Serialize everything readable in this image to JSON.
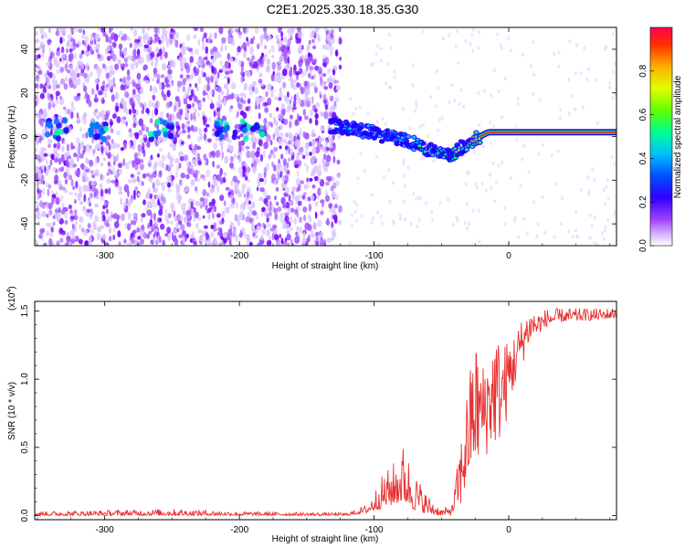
{
  "title": "C2E1.2025.330.18.35.G30",
  "chart_data": [
    {
      "type": "heatmap",
      "name": "spectrogram",
      "xlabel": "Height of straight line (km)",
      "ylabel": "Frequency (Hz)",
      "xlim": [
        -352,
        80
      ],
      "ylim": [
        -50,
        50
      ],
      "xticks": [
        -300,
        -200,
        -100,
        0
      ],
      "yticks": [
        -40,
        -20,
        0,
        20,
        40
      ],
      "colorbar": {
        "label": "Normalized spectral amplitude",
        "range": [
          0,
          1
        ],
        "ticks": [
          "0.0",
          "0.2",
          "0.4",
          "0.6",
          "0.8"
        ],
        "colormap": [
          "#ffffff",
          "#c080ff",
          "#7a00ff",
          "#2a00ff",
          "#0060ff",
          "#00c8ff",
          "#00ff80",
          "#b0ff00",
          "#ffe000",
          "#ff6000",
          "#ff0000"
        ]
      },
      "carrier_track": {
        "x": [
          -130,
          -110,
          -90,
          -70,
          -55,
          -45,
          -35,
          -25,
          -15,
          0,
          40,
          80
        ],
        "y": [
          5,
          3,
          0,
          -3,
          -7,
          -9,
          -5,
          -1,
          2,
          2,
          2,
          2
        ],
        "peak_amplitude": [
          0.35,
          0.4,
          0.45,
          0.5,
          0.5,
          0.5,
          0.55,
          0.6,
          0.8,
          0.85,
          0.9,
          0.9
        ]
      },
      "noise_clusters_x": [
        -335,
        -305,
        -258,
        -210,
        -190
      ],
      "noise_extent_x": [
        -352,
        -125
      ]
    },
    {
      "type": "line",
      "name": "snr",
      "xlabel": "Height of straight line (km)",
      "ylabel": "SNR (10 * v/v)",
      "multiplier_label": "(x10",
      "multiplier_exp": "4",
      "xlim": [
        -352,
        80
      ],
      "ylim": [
        -0.03,
        1.57
      ],
      "xticks": [
        -300,
        -200,
        -100,
        0
      ],
      "yticks": [
        "0.0",
        "0.5",
        "1.0",
        "1.5"
      ],
      "line_color": "#e83030",
      "envelope": {
        "x": [
          -352,
          -250,
          -200,
          -120,
          -105,
          -95,
          -85,
          -78,
          -70,
          -60,
          -50,
          -42,
          -35,
          -30,
          -25,
          -20,
          -15,
          -10,
          -5,
          0,
          5,
          10,
          15,
          20,
          30,
          40,
          50,
          60,
          70,
          80
        ],
        "low": [
          0.0,
          0.0,
          0.0,
          0.0,
          0.02,
          0.05,
          0.08,
          0.1,
          0.04,
          0.01,
          0.0,
          0.0,
          0.05,
          0.2,
          0.3,
          0.4,
          0.45,
          0.5,
          0.55,
          0.75,
          0.95,
          1.1,
          1.25,
          1.32,
          1.4,
          1.42,
          1.43,
          1.43,
          1.44,
          1.45
        ],
        "high": [
          0.03,
          0.05,
          0.03,
          0.02,
          0.08,
          0.28,
          0.4,
          0.53,
          0.32,
          0.15,
          0.05,
          0.08,
          0.6,
          1.0,
          1.3,
          1.1,
          1.2,
          1.35,
          1.25,
          1.3,
          1.35,
          1.45,
          1.5,
          1.5,
          1.52,
          1.52,
          1.52,
          1.52,
          1.52,
          1.53
        ]
      }
    }
  ]
}
